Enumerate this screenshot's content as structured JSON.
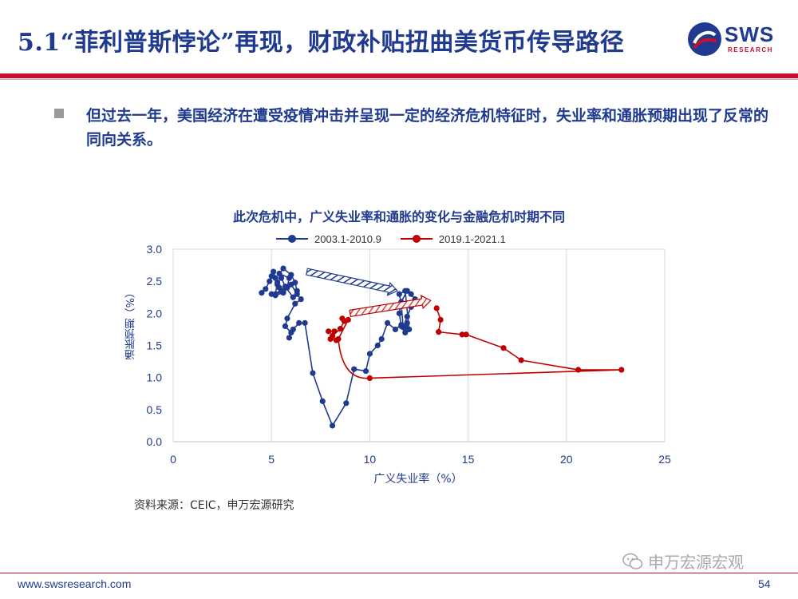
{
  "header": {
    "title": "5.1“菲利普斯悖论”再现，财政补贴扭曲美货币传导路径",
    "logo_text": "SWS",
    "logo_sub": "RESEARCH",
    "brand_color": "#1f3a8f",
    "accent_color": "#c8102e"
  },
  "bullet": {
    "text": "但过去一年，美国经济在遭受疫情冲击并呈现一定的经济危机特征时，失业率和通胀预期出现了反常的同向关系。"
  },
  "chart_data": {
    "type": "scatter",
    "title": "此次危机中，广义失业率和通胀的变化与金融危机时期不同",
    "xlabel": "广义失业率（%）",
    "ylabel": "通胀预期（%）",
    "xlim": [
      0,
      25
    ],
    "ylim": [
      0,
      3
    ],
    "xticks": [
      "0",
      "5",
      "10",
      "15",
      "20",
      "25"
    ],
    "yticks": [
      "0.0",
      "0.5",
      "1.0",
      "1.5",
      "2.0",
      "2.5",
      "3.0"
    ],
    "grid": "vertical",
    "legend_position": "top",
    "series": [
      {
        "name": "2003.1-2010.9",
        "color": "#1f3a8f",
        "x": [
          4.5,
          4.7,
          4.9,
          5.0,
          5.1,
          5.2,
          5.3,
          5.4,
          5.5,
          5.0,
          5.2,
          5.6,
          5.8,
          5.9,
          5.4,
          5.6,
          6.0,
          6.2,
          6.3,
          6.1,
          5.7,
          5.5,
          5.3,
          5.2,
          5.6,
          6.0,
          6.3,
          6.5,
          6.2,
          5.8,
          5.7,
          6.0,
          5.9,
          6.1,
          6.4,
          6.7,
          7.1,
          7.6,
          8.1,
          8.8,
          9.2,
          9.8,
          10.0,
          10.4,
          10.6,
          10.9,
          11.3,
          11.6,
          11.8,
          11.9,
          11.8,
          11.6,
          11.5,
          11.6,
          11.9,
          12.1,
          12.3,
          12.1,
          11.9,
          11.7,
          11.6,
          11.5,
          11.8,
          12.0
        ],
        "y": [
          2.32,
          2.38,
          2.5,
          2.58,
          2.65,
          2.55,
          2.45,
          2.4,
          2.35,
          2.3,
          2.28,
          2.32,
          2.4,
          2.55,
          2.62,
          2.7,
          2.6,
          2.48,
          2.35,
          2.25,
          2.42,
          2.55,
          2.48,
          2.3,
          2.35,
          2.45,
          2.3,
          2.22,
          2.15,
          1.92,
          1.8,
          1.7,
          1.62,
          1.75,
          1.85,
          1.85,
          1.07,
          0.63,
          0.25,
          0.6,
          1.13,
          1.1,
          1.37,
          1.5,
          1.6,
          1.85,
          1.75,
          1.82,
          1.8,
          1.85,
          1.7,
          1.8,
          2.0,
          2.18,
          2.35,
          2.3,
          2.22,
          2.1,
          1.95,
          1.78,
          2.15,
          2.3,
          2.35,
          1.75
        ],
        "path": "monthly sequence"
      },
      {
        "name": "2019.1-2021.1",
        "color": "#c00000",
        "x": [
          7.9,
          8.2,
          8.0,
          8.3,
          8.1,
          8.5,
          8.7,
          8.6,
          8.9,
          8.4,
          13.4,
          13.6,
          13.5,
          14.7,
          14.9,
          16.8,
          17.7,
          20.6,
          22.8
        ],
        "y": [
          1.72,
          1.72,
          1.6,
          1.58,
          1.65,
          1.76,
          1.88,
          1.92,
          1.9,
          1.6,
          2.08,
          1.9,
          1.71,
          1.67,
          1.67,
          1.46,
          1.27,
          1.12,
          1.12
        ]
      }
    ],
    "annotations": [
      {
        "type": "arrow",
        "from": [
          6.8,
          2.65
        ],
        "to": [
          11.4,
          2.35
        ],
        "color": "#1f3a8f"
      },
      {
        "type": "arrow",
        "from": [
          9.0,
          2.0
        ],
        "to": [
          13.1,
          2.2
        ],
        "color": "#c00000"
      }
    ]
  },
  "source": "资料来源：CEIC，申万宏源研究",
  "watermark": "申万宏源宏观",
  "footer": {
    "url": "www.swsresearch.com",
    "page": "54"
  }
}
